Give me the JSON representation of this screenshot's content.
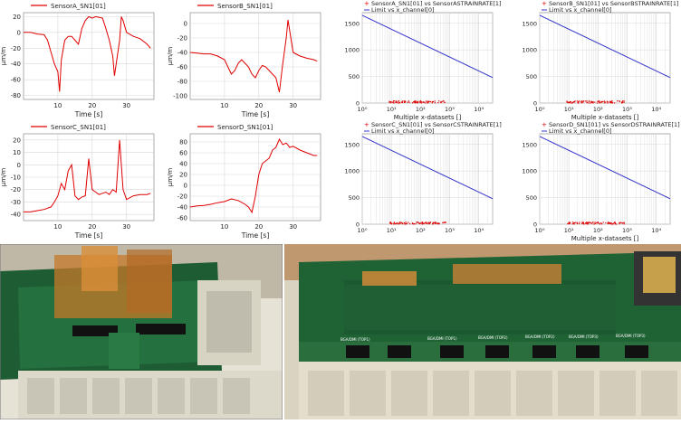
{
  "colors": {
    "time_trace": "#e00000",
    "scatter_points": "#e00000",
    "limit_line": "#3333cc",
    "grid": "#d8d8d8"
  },
  "time_charts": [
    {
      "legend": "SensorA_SN1[01]",
      "xlabel": "Time [s]",
      "ylabel": "µm/m",
      "xlim": [
        0,
        38
      ],
      "ylim": [
        -85,
        25
      ],
      "xticks": [
        10,
        20,
        30
      ],
      "yticks": [
        20,
        0,
        -20,
        -40,
        -60,
        -80
      ],
      "series": [
        [
          0,
          0
        ],
        [
          2,
          0
        ],
        [
          4,
          -2
        ],
        [
          6,
          -3
        ],
        [
          7,
          -10
        ],
        [
          8,
          -25
        ],
        [
          9,
          -40
        ],
        [
          10,
          -50
        ],
        [
          10.5,
          -75
        ],
        [
          11,
          -35
        ],
        [
          12,
          -10
        ],
        [
          13,
          -5
        ],
        [
          14,
          -5
        ],
        [
          15,
          -10
        ],
        [
          16,
          -15
        ],
        [
          17,
          5
        ],
        [
          18,
          15
        ],
        [
          19,
          20
        ],
        [
          20,
          18
        ],
        [
          21,
          20
        ],
        [
          22,
          19
        ],
        [
          23,
          18
        ],
        [
          24,
          5
        ],
        [
          25,
          -10
        ],
        [
          26,
          -30
        ],
        [
          26.5,
          -55
        ],
        [
          27,
          -40
        ],
        [
          28,
          -10
        ],
        [
          28.5,
          20
        ],
        [
          29,
          15
        ],
        [
          30,
          0
        ],
        [
          32,
          -5
        ],
        [
          34,
          -8
        ],
        [
          36,
          -15
        ],
        [
          37,
          -20
        ]
      ]
    },
    {
      "legend": "SensorB_SN1[01]",
      "xlabel": "Time [s]",
      "ylabel": "µm/m",
      "xlim": [
        0,
        38
      ],
      "ylim": [
        -105,
        15
      ],
      "xticks": [
        10,
        20,
        30
      ],
      "yticks": [
        0,
        -20,
        -40,
        -60,
        -80,
        -100
      ],
      "series": [
        [
          0,
          -40
        ],
        [
          2,
          -41
        ],
        [
          4,
          -42
        ],
        [
          6,
          -42
        ],
        [
          8,
          -45
        ],
        [
          10,
          -50
        ],
        [
          11,
          -60
        ],
        [
          12,
          -70
        ],
        [
          13,
          -65
        ],
        [
          14,
          -55
        ],
        [
          15,
          -50
        ],
        [
          16,
          -55
        ],
        [
          17,
          -60
        ],
        [
          18,
          -70
        ],
        [
          19,
          -75
        ],
        [
          20,
          -65
        ],
        [
          21,
          -58
        ],
        [
          22,
          -60
        ],
        [
          23,
          -65
        ],
        [
          24,
          -70
        ],
        [
          25,
          -75
        ],
        [
          26,
          -95
        ],
        [
          27,
          -55
        ],
        [
          28,
          -20
        ],
        [
          28.5,
          5
        ],
        [
          29,
          -10
        ],
        [
          30,
          -40
        ],
        [
          32,
          -45
        ],
        [
          34,
          -48
        ],
        [
          36,
          -50
        ],
        [
          37,
          -52
        ]
      ]
    },
    {
      "legend": "SensorC_SN1[01]",
      "xlabel": "Time [s]",
      "ylabel": "µm/m",
      "xlim": [
        0,
        38
      ],
      "ylim": [
        -45,
        25
      ],
      "xticks": [
        10,
        20,
        30
      ],
      "yticks": [
        20,
        10,
        0,
        -10,
        -20,
        -30,
        -40
      ],
      "series": [
        [
          0,
          -38
        ],
        [
          2,
          -38
        ],
        [
          4,
          -37
        ],
        [
          6,
          -36
        ],
        [
          8,
          -34
        ],
        [
          9,
          -30
        ],
        [
          10,
          -25
        ],
        [
          11,
          -15
        ],
        [
          12,
          -20
        ],
        [
          13,
          -5
        ],
        [
          14,
          0
        ],
        [
          15,
          -25
        ],
        [
          16,
          -28
        ],
        [
          17,
          -26
        ],
        [
          18,
          -25
        ],
        [
          19,
          5
        ],
        [
          20,
          -20
        ],
        [
          21,
          -22
        ],
        [
          22,
          -24
        ],
        [
          23,
          -23
        ],
        [
          24,
          -22
        ],
        [
          25,
          -24
        ],
        [
          26,
          -20
        ],
        [
          27,
          -22
        ],
        [
          28,
          20
        ],
        [
          29,
          -20
        ],
        [
          30,
          -28
        ],
        [
          32,
          -25
        ],
        [
          34,
          -24
        ],
        [
          36,
          -24
        ],
        [
          37,
          -23
        ]
      ]
    },
    {
      "legend": "SensorD_SN1[01]",
      "xlabel": "Time [s]",
      "ylabel": "µm/m",
      "xlim": [
        0,
        38
      ],
      "ylim": [
        -65,
        95
      ],
      "xticks": [
        10,
        20,
        30
      ],
      "yticks": [
        80,
        60,
        40,
        20,
        0,
        -20,
        -40,
        -60
      ],
      "series": [
        [
          0,
          -40
        ],
        [
          2,
          -38
        ],
        [
          4,
          -37
        ],
        [
          6,
          -35
        ],
        [
          8,
          -32
        ],
        [
          10,
          -30
        ],
        [
          12,
          -25
        ],
        [
          14,
          -28
        ],
        [
          16,
          -35
        ],
        [
          17,
          -40
        ],
        [
          18,
          -50
        ],
        [
          19,
          -20
        ],
        [
          20,
          20
        ],
        [
          21,
          40
        ],
        [
          22,
          45
        ],
        [
          23,
          50
        ],
        [
          24,
          65
        ],
        [
          25,
          70
        ],
        [
          26,
          85
        ],
        [
          27,
          75
        ],
        [
          28,
          78
        ],
        [
          29,
          70
        ],
        [
          30,
          72
        ],
        [
          32,
          65
        ],
        [
          34,
          60
        ],
        [
          36,
          55
        ],
        [
          37,
          55
        ]
      ]
    }
  ],
  "scatter_charts": [
    {
      "legend_points": "SensorA_SN1[01] vs SensorASTRAINRATE[1]",
      "legend_line": "Limit vs x_channel[0]",
      "xlabel": "Multiple x-datasets  []",
      "xscale": "log",
      "xlim": [
        1,
        30000
      ],
      "ylim": [
        0,
        1700
      ],
      "yticks": [
        1500,
        1000,
        500,
        0
      ],
      "xtick_labels": [
        "10⁰",
        "10¹",
        "10²",
        "10³",
        "10⁴"
      ],
      "limit": [
        [
          1,
          1650
        ],
        [
          30000,
          480
        ]
      ]
    },
    {
      "legend_points": "SensorB_SN1[01] vs SensorBSTRAINRATE[1]",
      "legend_line": "Limit vs x_channel[0]",
      "xlabel": "Multiple x-datasets  []",
      "xscale": "log",
      "xlim": [
        1,
        30000
      ],
      "ylim": [
        0,
        1700
      ],
      "yticks": [
        1500,
        1000,
        500,
        0
      ],
      "xtick_labels": [
        "10⁰",
        "10¹",
        "10²",
        "10³",
        "10⁴"
      ],
      "limit": [
        [
          1,
          1650
        ],
        [
          30000,
          480
        ]
      ]
    },
    {
      "legend_points": "SensorC_SN1[01] vs SensorCSTRAINRATE[1]",
      "legend_line": "Limit vs x_channel[0]",
      "xlabel": "",
      "xscale": "log",
      "xlim": [
        1,
        30000
      ],
      "ylim": [
        0,
        1700
      ],
      "yticks": [
        1500,
        1000,
        500,
        0
      ],
      "xtick_labels": [
        "10⁰",
        "10¹",
        "10²",
        "10³",
        "10⁴"
      ],
      "limit": [
        [
          1,
          1650
        ],
        [
          30000,
          480
        ]
      ]
    },
    {
      "legend_points": "SensorD_SN1[01] vs SensorDSTRAINRATE[1]",
      "legend_line": "Limit vs x_channel[0]",
      "xlabel": "Multiple x-datasets  []",
      "xscale": "log",
      "xlim": [
        1,
        30000
      ],
      "ylim": [
        0,
        1700
      ],
      "yticks": [
        1500,
        1000,
        500,
        0
      ],
      "xtick_labels": [
        "10⁰",
        "10¹",
        "10²",
        "10³",
        "10⁴"
      ],
      "limit": [
        [
          1,
          1650
        ],
        [
          30000,
          480
        ]
      ]
    }
  ],
  "photos": {
    "left_board_labels": [],
    "right_board_labels": [
      "BGA/DMI (TOP1)",
      "BGA/DMI (TOP1)",
      "BGA/DMI (TOP2)",
      "BGA/DMI (TOP2)",
      "BGA/DMI (TOP3)",
      "BGA/DMI (TOP3)"
    ]
  }
}
